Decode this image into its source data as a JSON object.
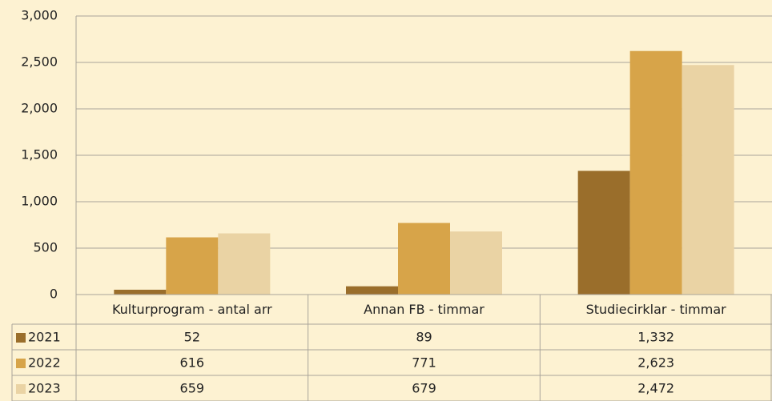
{
  "chart_data": {
    "type": "bar",
    "categories": [
      "Kulturprogram - antal arr",
      "Annan FB - timmar",
      "Studiecirklar - timmar"
    ],
    "series": [
      {
        "name": "2021",
        "color": "#9a6e2b",
        "values": [
          52,
          89,
          1332
        ],
        "value_labels": [
          "52",
          "89",
          "1,332"
        ]
      },
      {
        "name": "2022",
        "color": "#d7a449",
        "values": [
          616,
          771,
          2623
        ],
        "value_labels": [
          "616",
          "771",
          "2,623"
        ]
      },
      {
        "name": "2023",
        "color": "#ead3a4",
        "values": [
          659,
          679,
          2472
        ],
        "value_labels": [
          "659",
          "679",
          "2,472"
        ]
      }
    ],
    "ylim": [
      0,
      3000
    ],
    "yticks": [
      0,
      500,
      {
        "value": 1000,
        "label": "1,000"
      },
      {
        "value": 1500,
        "label": "1,500"
      },
      {
        "value": 2000,
        "label": "2,000"
      },
      {
        "value": 2500,
        "label": "2,500"
      },
      {
        "value": 3000,
        "label": "3,000"
      }
    ],
    "grid": true
  }
}
